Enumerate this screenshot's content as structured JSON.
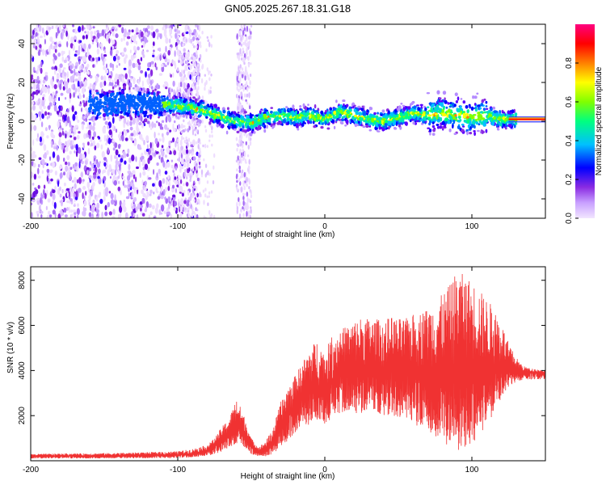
{
  "title": "GN05.2025.267.18.31.G18",
  "chart_data": [
    {
      "type": "heatmap",
      "xlabel": "Height of straight line (km)",
      "ylabel": "Frequency (Hz)",
      "xlim": [
        -200,
        150
      ],
      "ylim": [
        -50,
        50
      ],
      "xticks": [
        -200,
        -100,
        0,
        100
      ],
      "yticks": [
        -40,
        -20,
        0,
        20,
        40
      ],
      "colorbar": {
        "label": "Normalized spectral amplitude",
        "ticks": [
          0.0,
          0.2,
          0.4,
          0.6,
          0.8
        ],
        "range": [
          0,
          1
        ],
        "colors": [
          "#f2e6ff",
          "#8a2be2",
          "#0000ff",
          "#00c0ff",
          "#00ff80",
          "#80ff00",
          "#ffff00",
          "#ff8000",
          "#ff0000",
          "#ff0080"
        ]
      },
      "ridge": {
        "x": [
          -115,
          -100,
          -90,
          -80,
          -70,
          -60,
          -50,
          -40,
          -30,
          -20,
          -10,
          0,
          10,
          20,
          30,
          40,
          50,
          60,
          70,
          80,
          90,
          100,
          110,
          120,
          130,
          150
        ],
        "frequency": [
          9,
          8,
          7,
          5,
          2,
          0,
          -1,
          2,
          3,
          2,
          3,
          1,
          5,
          3,
          1,
          0,
          2,
          4,
          3,
          4,
          3,
          2,
          3,
          1,
          1,
          1
        ]
      },
      "noise_band": {
        "x_range": [
          -60,
          -50
        ],
        "frequency_range": [
          -50,
          50
        ]
      }
    },
    {
      "type": "line",
      "xlabel": "Height of straight line (km)",
      "ylabel": "SNR (10 * v/v)",
      "xlim": [
        -200,
        150
      ],
      "ylim": [
        0,
        8600
      ],
      "xticks": [
        -200,
        -100,
        0,
        100
      ],
      "yticks": [
        2000,
        4000,
        6000,
        8000
      ],
      "color": "#f03232",
      "series": [
        {
          "x": [
            -200,
            -180,
            -160,
            -140,
            -120,
            -100,
            -90,
            -80,
            -75,
            -70,
            -65,
            -60,
            -55,
            -50,
            -45,
            -40,
            -35,
            -30,
            -25,
            -20,
            -15,
            -10,
            -5,
            0,
            5,
            10,
            15,
            20,
            25,
            30,
            35,
            40,
            45,
            50,
            55,
            60,
            65,
            70,
            75,
            80,
            85,
            90,
            95,
            100,
            105,
            110,
            115,
            120,
            125,
            130,
            135,
            140,
            145,
            150
          ],
          "mean": [
            200,
            210,
            210,
            220,
            240,
            250,
            320,
            450,
            650,
            900,
            1200,
            1500,
            1300,
            700,
            400,
            500,
            800,
            1400,
            2000,
            2400,
            2900,
            3100,
            3300,
            3100,
            3500,
            3700,
            3800,
            3900,
            3900,
            4000,
            4000,
            3900,
            4000,
            4000,
            3900,
            4000,
            4000,
            3900,
            3900,
            3900,
            4000,
            4000,
            4100,
            4000,
            3900,
            4000,
            3900,
            3900,
            3900,
            3900,
            3900,
            3900,
            3900,
            3900
          ],
          "upper": [
            300,
            320,
            330,
            350,
            380,
            420,
            520,
            700,
            1000,
            1500,
            1900,
            2800,
            2000,
            1000,
            600,
            900,
            1500,
            2600,
            3300,
            3800,
            4400,
            5000,
            5400,
            4800,
            5600,
            5800,
            6000,
            6200,
            6400,
            6300,
            6300,
            6200,
            6400,
            6300,
            6300,
            6500,
            6600,
            6800,
            7000,
            7400,
            7800,
            8500,
            8200,
            8000,
            7600,
            7200,
            6800,
            6200,
            5200,
            4600,
            4200,
            4100,
            4050,
            4000
          ],
          "lower": [
            100,
            100,
            100,
            110,
            110,
            120,
            150,
            200,
            300,
            400,
            600,
            700,
            600,
            300,
            200,
            200,
            300,
            600,
            900,
            1200,
            1500,
            1600,
            1800,
            1500,
            1900,
            2100,
            2200,
            2100,
            2100,
            2200,
            2100,
            1900,
            1900,
            1800,
            1700,
            1600,
            1400,
            1200,
            1000,
            800,
            600,
            400,
            500,
            700,
            1100,
            1600,
            2100,
            2700,
            3200,
            3500,
            3600,
            3600,
            3600,
            3600
          ]
        }
      ]
    }
  ]
}
